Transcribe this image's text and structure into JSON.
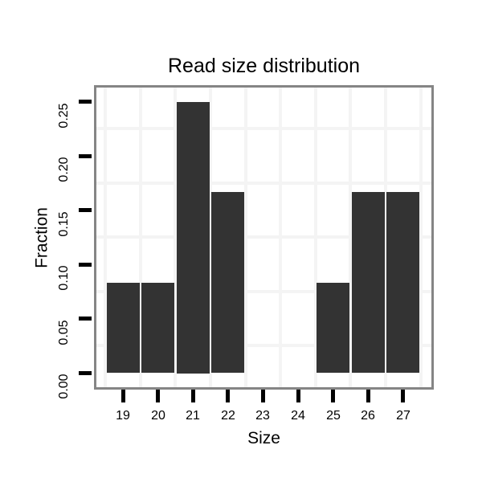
{
  "chart_data": {
    "type": "bar",
    "title": "Read size distribution",
    "xlabel": "Size",
    "ylabel": "Fraction",
    "categories": [
      "19",
      "20",
      "21",
      "22",
      "23",
      "24",
      "25",
      "26",
      "27"
    ],
    "values": [
      0.083,
      0.083,
      0.25,
      0.167,
      0,
      0,
      0.083,
      0.167,
      0.167
    ],
    "y_ticks": [
      0,
      0.05,
      0.1,
      0.15,
      0.2,
      0.25
    ],
    "y_tick_labels": [
      "0.00",
      "0.05",
      "0.10",
      "0.15",
      "0.20",
      "0.25"
    ],
    "ylim": [
      -0.013,
      0.263
    ],
    "xlim": [
      18.2,
      27.85
    ],
    "grid": "minor-gridlines-only",
    "legend": "none",
    "colors": {
      "bar": "#333333",
      "panel_border": "#858585",
      "gridline": "#f4f4f4",
      "tick": "#000000",
      "text": "#000000",
      "background": "#ffffff"
    }
  }
}
